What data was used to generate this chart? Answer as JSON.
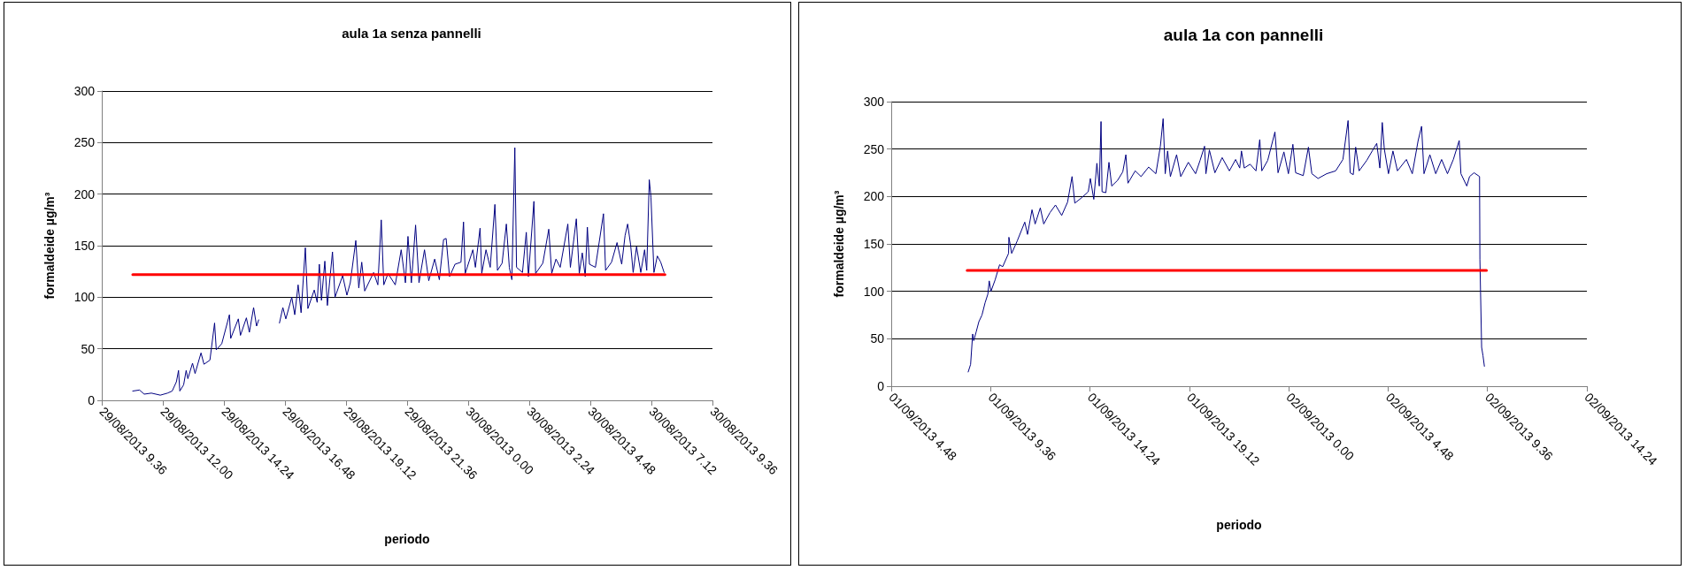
{
  "chart_data": [
    {
      "type": "line",
      "title": "aula 1a senza pannelli",
      "xlabel": "periodo",
      "ylabel": "formaldeide µg/m³",
      "xlim": [
        "2013-08-29T09:36",
        "2013-08-30T09:36"
      ],
      "ylim": [
        0,
        300
      ],
      "yticks": [
        0,
        50,
        100,
        150,
        200,
        250,
        300
      ],
      "xticks": [
        {
          "value": "2013-08-29T09:36",
          "label": "29/08/2013 9.36"
        },
        {
          "value": "2013-08-29T12:00",
          "label": "29/08/2013 12.00"
        },
        {
          "value": "2013-08-29T14:24",
          "label": "29/08/2013 14.24"
        },
        {
          "value": "2013-08-29T16:48",
          "label": "29/08/2013 16.48"
        },
        {
          "value": "2013-08-29T19:12",
          "label": "29/08/2013 19.12"
        },
        {
          "value": "2013-08-29T21:36",
          "label": "29/08/2013 21.36"
        },
        {
          "value": "2013-08-30T00:00",
          "label": "30/08/2013 0.00"
        },
        {
          "value": "2013-08-30T02:24",
          "label": "30/08/2013 2.24"
        },
        {
          "value": "2013-08-30T04:48",
          "label": "30/08/2013 4.48"
        },
        {
          "value": "2013-08-30T07:12",
          "label": "30/08/2013 7.12"
        },
        {
          "value": "2013-08-30T09:36",
          "label": "30/08/2013 9.36"
        }
      ],
      "grid": "y",
      "marker": "none",
      "series": [
        {
          "color": "#000080",
          "x": [
            "2013-08-29T10:49",
            "2013-08-29T11:05",
            "2013-08-29T11:16",
            "2013-08-29T11:33",
            "2013-08-29T11:54",
            "2013-08-29T12:11",
            "2013-08-29T12:22",
            "2013-08-29T12:32",
            "2013-08-29T12:37",
            "2013-08-29T12:40",
            "2013-08-29T12:49",
            "2013-08-29T12:55",
            "2013-08-29T12:59",
            "2013-08-29T13:10",
            "2013-08-29T13:16",
            "2013-08-29T13:30",
            "2013-08-29T13:37",
            "2013-08-29T13:51",
            "2013-08-29T14:02",
            "2013-08-29T14:06",
            "2013-08-29T14:19",
            "2013-08-29T14:37",
            "2013-08-29T14:40",
            "2013-08-29T14:58",
            "2013-08-29T15:03",
            "2013-08-29T15:17",
            "2013-08-29T15:24",
            "2013-08-29T15:34",
            "2013-08-29T15:41",
            "2013-08-29T15:46",
            "2013-08-29T16:12",
            "2013-08-29T16:35",
            "2013-08-29T16:43",
            "2013-08-29T16:50",
            "2013-08-29T17:04",
            "2013-08-29T17:11",
            "2013-08-29T17:19",
            "2013-08-29T17:26",
            "2013-08-29T17:36",
            "2013-08-29T17:42",
            "2013-08-29T17:57",
            "2013-08-29T18:04",
            "2013-08-29T18:09",
            "2013-08-29T18:14",
            "2013-08-29T18:22",
            "2013-08-29T18:28",
            "2013-08-29T18:40",
            "2013-08-29T18:46",
            "2013-08-29T19:04",
            "2013-08-29T19:14",
            "2013-08-29T19:22",
            "2013-08-29T19:35",
            "2013-08-29T19:42",
            "2013-08-29T19:49",
            "2013-08-29T19:56",
            "2013-08-29T20:17",
            "2013-08-29T20:27",
            "2013-08-29T20:35",
            "2013-08-29T20:41",
            "2013-08-29T20:51",
            "2013-08-29T21:08",
            "2013-08-29T21:22",
            "2013-08-29T21:32",
            "2013-08-29T21:38",
            "2013-08-29T21:46",
            "2013-08-29T21:56",
            "2013-08-29T22:04",
            "2013-08-29T22:17",
            "2013-08-29T22:27",
            "2013-08-29T22:41",
            "2013-08-29T22:52",
            "2013-08-29T23:02",
            "2013-08-29T23:08",
            "2013-08-29T23:16",
            "2013-08-29T23:29",
            "2013-08-29T23:43",
            "2013-08-29T23:49",
            "2013-08-29T23:53",
            "2013-08-30T00:11",
            "2013-08-30T00:17",
            "2013-08-30T00:28",
            "2013-08-30T00:32",
            "2013-08-30T00:42",
            "2013-08-30T00:52",
            "2013-08-30T01:03",
            "2013-08-30T01:09",
            "2013-08-30T01:20",
            "2013-08-30T01:30",
            "2013-08-30T01:37",
            "2013-08-30T01:43",
            "2013-08-30T01:50",
            "2013-08-30T01:54",
            "2013-08-30T02:08",
            "2013-08-30T02:17",
            "2013-08-30T02:22",
            "2013-08-30T02:35",
            "2013-08-30T02:39",
            "2013-08-30T02:56",
            "2013-08-30T03:10",
            "2013-08-30T03:17",
            "2013-08-30T03:27",
            "2013-08-30T03:37",
            "2013-08-30T03:55",
            "2013-08-30T04:01",
            "2013-08-30T04:15",
            "2013-08-30T04:22",
            "2013-08-30T04:29",
            "2013-08-30T04:36",
            "2013-08-30T04:41",
            "2013-08-30T04:46",
            "2013-08-30T05:00",
            "2013-08-30T05:19",
            "2013-08-30T05:24",
            "2013-08-30T05:38",
            "2013-08-30T05:51",
            "2013-08-30T06:02",
            "2013-08-30T06:10",
            "2013-08-30T06:16",
            "2013-08-30T06:23",
            "2013-08-30T06:29",
            "2013-08-30T06:37",
            "2013-08-30T06:47",
            "2013-08-30T06:56",
            "2013-08-30T07:01",
            "2013-08-30T07:07",
            "2013-08-30T07:11",
            "2013-08-30T07:18",
            "2013-08-30T07:26",
            "2013-08-30T07:34",
            "2013-08-30T07:42"
          ],
          "values": [
            9,
            10,
            6,
            7,
            5,
            7,
            9,
            18,
            29,
            9,
            15,
            29,
            21,
            36,
            26,
            46,
            35,
            39,
            75,
            49,
            55,
            83,
            60,
            79,
            63,
            80,
            66,
            90,
            72,
            78,
            null,
            75,
            90,
            79,
            100,
            83,
            112,
            85,
            148,
            89,
            107,
            95,
            132,
            97,
            135,
            92,
            144,
            100,
            121,
            102,
            114,
            155,
            109,
            134,
            106,
            124,
            112,
            175,
            112,
            123,
            112,
            146,
            114,
            159,
            114,
            170,
            114,
            146,
            116,
            137,
            117,
            156,
            157,
            120,
            132,
            134,
            173,
            123,
            146,
            129,
            167,
            123,
            146,
            129,
            190,
            126,
            133,
            171,
            129,
            117,
            245,
            129,
            124,
            163,
            120,
            193,
            123,
            133,
            166,
            123,
            137,
            129,
            171,
            129,
            176,
            123,
            143,
            120,
            168,
            132,
            129,
            181,
            126,
            134,
            153,
            132,
            160,
            171,
            151,
            124,
            149,
            124,
            146,
            126,
            214,
            197,
            124,
            140,
            134,
            124
          ]
        },
        {
          "color": "#ff0000",
          "x": [
            "2013-08-29T10:49",
            "2013-08-30T07:44"
          ],
          "values": [
            122,
            122
          ]
        }
      ]
    },
    {
      "type": "line",
      "title": "aula 1a con pannelli",
      "xlabel": "periodo",
      "ylabel": "formaldeide µg/m³",
      "xlim": [
        "2013-09-01T04:48",
        "2013-09-02T14:24"
      ],
      "ylim": [
        0,
        300
      ],
      "yticks": [
        0,
        50,
        100,
        150,
        200,
        250,
        300
      ],
      "xticks": [
        {
          "value": "2013-09-01T04:48",
          "label": "01/09/2013 4.48"
        },
        {
          "value": "2013-09-01T09:36",
          "label": "01/09/2013 9.36"
        },
        {
          "value": "2013-09-01T14:24",
          "label": "01/09/2013 14.24"
        },
        {
          "value": "2013-09-01T19:12",
          "label": "01/09/2013 19.12"
        },
        {
          "value": "2013-09-02T00:00",
          "label": "02/09/2013 0.00"
        },
        {
          "value": "2013-09-02T04:48",
          "label": "02/09/2013 4.48"
        },
        {
          "value": "2013-09-02T09:36",
          "label": "02/09/2013 9.36"
        },
        {
          "value": "2013-09-02T14:24",
          "label": "02/09/2013 14.24"
        }
      ],
      "grid": "y",
      "marker": "none",
      "series": [
        {
          "color": "#000080",
          "x": [
            "2013-09-01T08:31",
            "2013-09-01T08:38",
            "2013-09-01T08:44",
            "2013-09-01T08:47",
            "2013-09-01T08:54",
            "2013-09-01T09:02",
            "2013-09-01T09:11",
            "2013-09-01T09:20",
            "2013-09-01T09:28",
            "2013-09-01T09:32",
            "2013-09-01T09:37",
            "2013-09-01T09:49",
            "2013-09-01T10:02",
            "2013-09-01T10:11",
            "2013-09-01T10:28",
            "2013-09-01T10:29",
            "2013-09-01T10:37",
            "2013-09-01T10:53",
            "2013-09-01T11:15",
            "2013-09-01T11:23",
            "2013-09-01T11:36",
            "2013-09-01T11:45",
            "2013-09-01T12:00",
            "2013-09-01T12:10",
            "2013-09-01T12:28",
            "2013-09-01T12:44",
            "2013-09-01T13:02",
            "2013-09-01T13:19",
            "2013-09-01T13:32",
            "2013-09-01T13:40",
            "2013-09-01T14:01",
            "2013-09-01T14:19",
            "2013-09-01T14:25",
            "2013-09-01T14:35",
            "2013-09-01T14:44",
            "2013-09-01T14:51",
            "2013-09-01T14:56",
            "2013-09-01T14:59",
            "2013-09-01T15:10",
            "2013-09-01T15:19",
            "2013-09-01T15:27",
            "2013-09-01T15:44",
            "2013-09-01T15:59",
            "2013-09-01T16:08",
            "2013-09-01T16:14",
            "2013-09-01T16:35",
            "2013-09-01T16:52",
            "2013-09-01T17:14",
            "2013-09-01T17:35",
            "2013-09-01T17:48",
            "2013-09-01T17:56",
            "2013-09-01T18:02",
            "2013-09-01T18:09",
            "2013-09-01T18:17",
            "2013-09-01T18:35",
            "2013-09-01T18:47",
            "2013-09-01T19:09",
            "2013-09-01T19:30",
            "2013-09-01T19:43",
            "2013-09-01T19:56",
            "2013-09-01T20:00",
            "2013-09-01T20:10",
            "2013-09-01T20:26",
            "2013-09-01T20:47",
            "2013-09-01T21:08",
            "2013-09-01T21:26",
            "2013-09-01T21:38",
            "2013-09-01T21:43",
            "2013-09-01T21:51",
            "2013-09-01T22:08",
            "2013-09-01T22:25",
            "2013-09-01T22:36",
            "2013-09-01T22:42",
            "2013-09-01T22:59",
            "2013-09-01T23:20",
            "2013-09-01T23:29",
            "2013-09-01T23:46",
            "2013-09-01T23:59",
            "2013-09-02T00:12",
            "2013-09-02T00:20",
            "2013-09-02T00:42",
            "2013-09-02T00:57",
            "2013-09-02T01:07",
            "2013-09-02T01:25",
            "2013-09-02T01:50",
            "2013-09-02T02:16",
            "2013-09-02T02:37",
            "2013-09-02T02:52",
            "2013-09-02T02:58",
            "2013-09-02T03:07",
            "2013-09-02T03:14",
            "2013-09-02T03:24",
            "2013-09-02T03:46",
            "2013-09-02T04:02",
            "2013-09-02T04:15",
            "2013-09-02T04:24",
            "2013-09-02T04:31",
            "2013-09-02T04:37",
            "2013-09-02T04:49",
            "2013-09-02T05:02",
            "2013-09-02T05:15",
            "2013-09-02T05:41",
            "2013-09-02T05:58",
            "2013-09-02T06:15",
            "2013-09-02T06:25",
            "2013-09-02T06:32",
            "2013-09-02T06:49",
            "2013-09-02T07:06",
            "2013-09-02T07:23",
            "2013-09-02T07:40",
            "2013-09-02T07:57",
            "2013-09-02T08:14",
            "2013-09-02T08:19",
            "2013-09-02T08:36",
            "2013-09-02T08:44",
            "2013-09-02T08:57",
            "2013-09-02T09:13",
            "2013-09-02T09:14",
            "2013-09-02T09:19",
            "2013-09-02T09:23",
            "2013-09-02T09:27"
          ],
          "values": [
            15,
            23,
            55,
            48,
            57,
            68,
            75,
            88,
            97,
            111,
            100,
            112,
            128,
            126,
            140,
            157,
            140,
            153,
            173,
            160,
            186,
            171,
            188,
            171,
            183,
            191,
            180,
            194,
            221,
            193,
            199,
            205,
            219,
            197,
            235,
            211,
            279,
            205,
            204,
            236,
            211,
            217,
            226,
            244,
            214,
            227,
            221,
            231,
            224,
            253,
            282,
            224,
            248,
            221,
            244,
            221,
            236,
            224,
            238,
            253,
            224,
            249,
            225,
            241,
            227,
            239,
            230,
            248,
            230,
            234,
            227,
            260,
            227,
            238,
            268,
            225,
            247,
            224,
            255,
            225,
            222,
            252,
            224,
            219,
            224,
            227,
            239,
            280,
            225,
            223,
            252,
            227,
            238,
            248,
            256,
            230,
            278,
            250,
            224,
            248,
            227,
            239,
            224,
            259,
            274,
            224,
            244,
            224,
            239,
            224,
            239,
            259,
            224,
            211,
            221,
            225,
            221,
            134,
            41,
            32,
            21
          ]
        },
        {
          "color": "#ff0000",
          "x": [
            "2013-09-01T08:28",
            "2013-09-02T09:33"
          ],
          "values": [
            122,
            122
          ]
        }
      ]
    }
  ]
}
